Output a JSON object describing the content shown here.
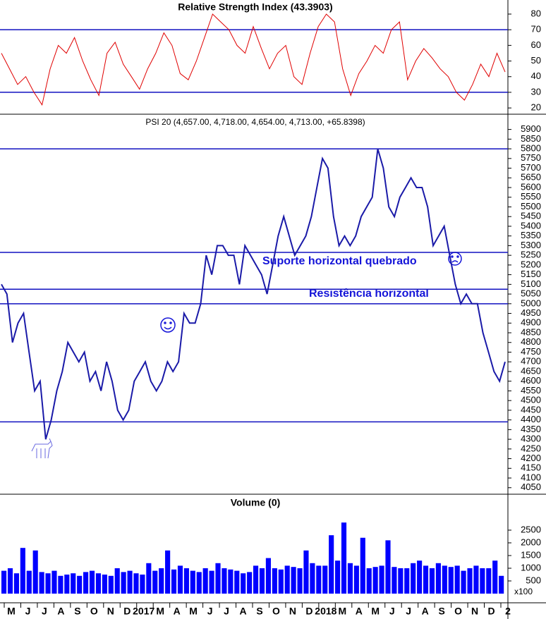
{
  "chart_data": [
    {
      "type": "line",
      "title": "Relative Strength Index (43.3903)",
      "color": "#e00000",
      "level_color": "#1010c0",
      "ylim": [
        16,
        89
      ],
      "yticks": [
        20,
        30,
        40,
        50,
        60,
        70,
        80
      ],
      "levels": [
        70,
        30
      ],
      "values": [
        55,
        45,
        35,
        40,
        30,
        22,
        45,
        60,
        55,
        65,
        50,
        38,
        28,
        55,
        62,
        48,
        40,
        32,
        45,
        55,
        68,
        60,
        42,
        38,
        50,
        65,
        80,
        75,
        70,
        60,
        55,
        72,
        58,
        45,
        55,
        60,
        40,
        35,
        55,
        72,
        80,
        75,
        45,
        28,
        42,
        50,
        60,
        55,
        70,
        75,
        38,
        50,
        58,
        52,
        45,
        40,
        30,
        25,
        35,
        48,
        40,
        55,
        43
      ]
    },
    {
      "type": "line",
      "title": "PSI 20 (4,657.00, 4,718.00, 4,654.00, 4,713.00, +65.8398)",
      "color": "#1a1aa8",
      "level_color": "#1010c0",
      "ylim": [
        4020,
        5975
      ],
      "yticks": [
        4050,
        4100,
        4150,
        4200,
        4250,
        4300,
        4350,
        4400,
        4450,
        4500,
        4550,
        4600,
        4650,
        4700,
        4750,
        4800,
        4850,
        4900,
        4950,
        5000,
        5050,
        5100,
        5150,
        5200,
        5250,
        5300,
        5350,
        5400,
        5450,
        5500,
        5550,
        5600,
        5650,
        5700,
        5750,
        5800,
        5850,
        5900
      ],
      "levels": [
        5800,
        5265,
        5075,
        5000,
        4390
      ],
      "annotations": [
        "Suporte horizontal quebrado",
        "Resistência horizontal"
      ],
      "values": [
        5100,
        5050,
        4800,
        4900,
        4950,
        4750,
        4550,
        4600,
        4300,
        4400,
        4550,
        4650,
        4800,
        4750,
        4700,
        4750,
        4600,
        4650,
        4550,
        4700,
        4600,
        4450,
        4400,
        4450,
        4600,
        4650,
        4700,
        4600,
        4550,
        4600,
        4700,
        4650,
        4700,
        4950,
        4900,
        4900,
        5000,
        5250,
        5150,
        5300,
        5300,
        5250,
        5250,
        5100,
        5300,
        5250,
        5200,
        5150,
        5050,
        5200,
        5350,
        5450,
        5350,
        5250,
        5300,
        5350,
        5450,
        5600,
        5750,
        5700,
        5450,
        5300,
        5350,
        5300,
        5350,
        5450,
        5500,
        5550,
        5800,
        5700,
        5500,
        5450,
        5550,
        5600,
        5650,
        5600,
        5600,
        5500,
        5300,
        5350,
        5400,
        5250,
        5100,
        5000,
        5050,
        5000,
        5000,
        4850,
        4750,
        4650,
        4600,
        4700
      ]
    },
    {
      "type": "bar",
      "title": "Volume (0)",
      "color": "#0000ff",
      "unit_label": "x100",
      "ylim": [
        0,
        3860
      ],
      "yticks": [
        500,
        1000,
        1500,
        2000,
        2500
      ],
      "x_tick_labels": [
        "M",
        "J",
        "J",
        "A",
        "S",
        "O",
        "N",
        "D",
        "2017",
        "M",
        "A",
        "M",
        "J",
        "J",
        "A",
        "S",
        "O",
        "N",
        "D",
        "2018",
        "M",
        "A",
        "M",
        "J",
        "J",
        "A",
        "S",
        "O",
        "N",
        "D",
        "2"
      ],
      "values": [
        900,
        1000,
        800,
        1800,
        900,
        1700,
        850,
        800,
        900,
        700,
        750,
        800,
        700,
        850,
        900,
        800,
        750,
        700,
        1000,
        850,
        900,
        800,
        750,
        1200,
        900,
        1000,
        1700,
        950,
        1100,
        1000,
        900,
        850,
        1000,
        900,
        1200,
        1000,
        950,
        900,
        800,
        850,
        1100,
        1000,
        1400,
        1000,
        950,
        1100,
        1050,
        1000,
        1700,
        1200,
        1100,
        1100,
        2300,
        1300,
        2800,
        1200,
        1100,
        2200,
        1000,
        1050,
        1100,
        2100,
        1050,
        1000,
        1000,
        1200,
        1300,
        1100,
        1000,
        1200,
        1100,
        1050,
        1100,
        900,
        1000,
        1100,
        1000,
        1000,
        1300,
        700
      ]
    }
  ]
}
